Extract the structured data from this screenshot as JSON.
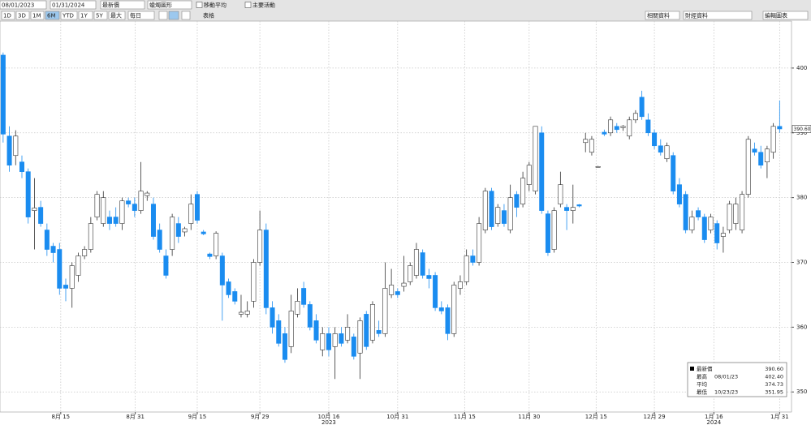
{
  "toolbar": {
    "start_date": "08/01/2023",
    "end_date": "01/31/2024",
    "field": "最新價",
    "chart_style": "蠟燭圖形",
    "moving_avg": "移動平均",
    "events": "主要活動",
    "ranges": [
      "1D",
      "3D",
      "1M",
      "6M",
      "YTD",
      "1Y",
      "5Y",
      "最大"
    ],
    "frequency": "每日",
    "table": "表格",
    "related": "相關資料",
    "financial": "財經資料",
    "edit": "編輯圖表"
  },
  "chart_data": {
    "type": "candlestick",
    "up_color": "#ffffff",
    "down_color": "#1a8cf0",
    "grid": true,
    "open": [
      402,
      389.5,
      386.5,
      385.5,
      384,
      378,
      378.5,
      375,
      372.5,
      372,
      366.5,
      366,
      368,
      371,
      372,
      377,
      376,
      377,
      377,
      376,
      379.5,
      379,
      378,
      380.3,
      379,
      375,
      371,
      372,
      376,
      374.7,
      376,
      380.5,
      374.7,
      371.3,
      371,
      371,
      367,
      365.5,
      362,
      362,
      364,
      370,
      375,
      363,
      361,
      359,
      357,
      362,
      366,
      363.5,
      361,
      356.5,
      359,
      357,
      359,
      358,
      358.5,
      356,
      362,
      358,
      359.5,
      359,
      365,
      365.5,
      366.3,
      367,
      368,
      371.5,
      368,
      368,
      363,
      363,
      359,
      366,
      367,
      371,
      370,
      375,
      381,
      376,
      378,
      375,
      380.5,
      379,
      382,
      381,
      390,
      377.5,
      372,
      379,
      378.5,
      378,
      378.9,
      388.5,
      387,
      384.8,
      390.1,
      390,
      391,
      390.8,
      389.5,
      392,
      395.5,
      392,
      390,
      388,
      386,
      386.5,
      382,
      380.5,
      375,
      378,
      377,
      375,
      376,
      374,
      375,
      376,
      375,
      380.5,
      387.5,
      387,
      385.5,
      387,
      391
    ],
    "high": [
      402.4,
      391,
      390.4,
      386.5,
      384.5,
      383,
      379.5,
      376,
      373,
      373,
      367.5,
      370,
      371.5,
      372.5,
      377,
      381,
      381,
      378,
      378.5,
      380,
      380,
      380,
      385.5,
      381,
      380,
      376,
      372,
      377.5,
      377,
      375.5,
      380.5,
      381,
      375,
      371.5,
      374.8,
      371.5,
      367.5,
      366,
      365,
      364,
      370.5,
      378,
      376,
      364,
      362,
      360,
      365,
      366,
      367,
      364,
      362,
      360,
      360,
      360,
      360,
      362,
      359,
      361.5,
      362.5,
      364,
      361,
      370,
      369,
      366,
      371,
      370,
      373,
      372,
      369,
      368.5,
      364,
      363.5,
      367,
      368,
      372,
      372,
      377,
      381.5,
      381.5,
      379,
      379,
      382,
      381,
      384,
      385.5,
      391,
      391,
      378,
      378.5,
      384,
      379,
      382,
      379,
      390,
      389.5,
      384.9,
      390.5,
      392.5,
      391.5,
      391.2,
      392.5,
      393.5,
      396.5,
      393,
      390.5,
      389,
      388.5,
      387,
      383,
      381,
      378,
      378.5,
      377.5,
      377.5,
      376.5,
      375.5,
      379.5,
      380,
      381,
      389.5,
      388.5,
      388,
      388,
      391.5,
      395
    ],
    "low": [
      388.5,
      384,
      385,
      383,
      376,
      372,
      375.5,
      371,
      370,
      365,
      364,
      363,
      367,
      370.5,
      371.5,
      376.5,
      375.5,
      375,
      375.5,
      375,
      378.5,
      377,
      377.5,
      379.5,
      373.5,
      371.5,
      367.5,
      371,
      373,
      374,
      375,
      376,
      374.2,
      370.5,
      370.5,
      361,
      364.5,
      363.5,
      361.5,
      361.5,
      363,
      369.5,
      362,
      359,
      357,
      354.5,
      356,
      361.5,
      363,
      359.5,
      357.5,
      355.5,
      355.5,
      352,
      357,
      357.5,
      355,
      352,
      356.5,
      357.5,
      358.5,
      358.5,
      364.5,
      364.5,
      365.5,
      366.5,
      367.5,
      367.5,
      366,
      362.5,
      362,
      358,
      358.5,
      365,
      366.5,
      369.5,
      369.5,
      374.5,
      375,
      375.5,
      375.5,
      374.5,
      377,
      378.5,
      381,
      380.5,
      377.5,
      371,
      371.5,
      378.5,
      375,
      376,
      378.5,
      387,
      386.5,
      384.7,
      389.5,
      389.5,
      390,
      390.3,
      389,
      391.5,
      392,
      389.5,
      387.5,
      386.5,
      385.5,
      380.5,
      378.5,
      374.5,
      374.5,
      376.5,
      373,
      374.5,
      372,
      371.5,
      374.5,
      375,
      374.5,
      380,
      386.5,
      384.5,
      383,
      386,
      390
    ],
    "close": [
      389.8,
      385,
      389.5,
      384,
      377,
      378.4,
      376,
      372,
      371.5,
      366,
      366,
      369.5,
      371,
      372,
      376,
      380.5,
      380,
      376,
      376,
      379.5,
      379,
      378,
      381,
      380.7,
      374,
      372,
      368,
      377,
      374,
      375.2,
      379,
      376.5,
      374.4,
      370.9,
      374.5,
      366.5,
      365,
      364,
      362.3,
      362.5,
      370,
      375,
      363,
      360,
      357.5,
      355,
      362.5,
      364,
      363.5,
      360,
      358,
      359,
      356.5,
      359,
      357.5,
      360,
      355.5,
      361,
      357,
      363.5,
      359,
      366,
      366.5,
      365,
      366.8,
      369.5,
      372,
      368,
      367.5,
      363,
      362.5,
      359,
      366.5,
      367,
      371,
      370,
      376,
      381,
      375.5,
      378.5,
      376,
      380,
      378.5,
      383,
      385,
      391,
      378,
      371.5,
      378,
      382,
      378,
      378.5,
      378.7,
      389,
      389,
      384.8,
      389.8,
      392,
      390.5,
      391,
      392,
      393,
      392.5,
      390,
      388,
      387,
      388,
      381,
      379,
      375,
      377,
      377,
      373.5,
      377,
      373,
      374.5,
      379,
      379,
      380.5,
      389,
      387,
      385,
      387.5,
      391,
      390.6
    ],
    "ylim": [
      346.9,
      407.25
    ],
    "yticks": [
      350,
      360,
      370,
      380,
      390,
      400
    ],
    "xlim": [
      -0.5,
      125.9
    ],
    "xticks": [
      {
        "value": 9.2,
        "label": "8月 15"
      },
      {
        "value": 21.1,
        "label": "8月 31"
      },
      {
        "value": 31,
        "label": "9月 15"
      },
      {
        "value": 41,
        "label": "9月 29"
      },
      {
        "value": 52,
        "label": "10月 16"
      },
      {
        "value": 63,
        "label": "10月 31"
      },
      {
        "value": 73.7,
        "label": "11月 15"
      },
      {
        "value": 84,
        "label": "11月 30"
      },
      {
        "value": 94.7,
        "label": "12月 15"
      },
      {
        "value": 104,
        "label": "12月 29"
      },
      {
        "value": 113.5,
        "label": "1月 16"
      },
      {
        "value": 124,
        "label": "1月 31"
      }
    ],
    "year_labels": [
      {
        "value": 52,
        "label": "2023"
      },
      {
        "value": 113.5,
        "label": "2024"
      }
    ],
    "last_price": 390.6,
    "last_price_label": "390.60",
    "stats": [
      {
        "name": "最新價",
        "date": "",
        "value": "390.60"
      },
      {
        "name": "最高",
        "date": "08/01/23",
        "value": "402.40"
      },
      {
        "name": "平均",
        "date": "",
        "value": "374.73"
      },
      {
        "name": "最低",
        "date": "10/23/23",
        "value": "351.95"
      }
    ]
  }
}
